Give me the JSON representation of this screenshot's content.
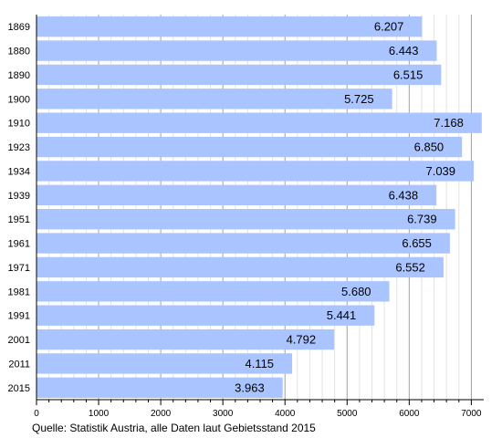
{
  "chart_data": {
    "type": "bar",
    "orientation": "horizontal",
    "categories": [
      "1869",
      "1880",
      "1890",
      "1900",
      "1910",
      "1923",
      "1934",
      "1939",
      "1951",
      "1961",
      "1971",
      "1981",
      "1991",
      "2001",
      "2011",
      "2015"
    ],
    "values": [
      6207,
      6443,
      6515,
      5725,
      7168,
      6850,
      7039,
      6438,
      6739,
      6655,
      6552,
      5680,
      5441,
      4792,
      4115,
      3963
    ],
    "value_labels": [
      "6.207",
      "6.443",
      "6.515",
      "5.725",
      "7.168",
      "6.850",
      "7.039",
      "6.438",
      "6.739",
      "6.655",
      "6.552",
      "5.680",
      "5.441",
      "4.792",
      "4.115",
      "3.963"
    ],
    "xlim": [
      0,
      7200
    ],
    "xticks": [
      0,
      1000,
      2000,
      3000,
      4000,
      5000,
      6000,
      7000
    ],
    "grid": true,
    "bar_color": "#aac4ff"
  },
  "source_note": "Quelle: Statistik Austria, alle Daten laut Gebietsstand 2015"
}
